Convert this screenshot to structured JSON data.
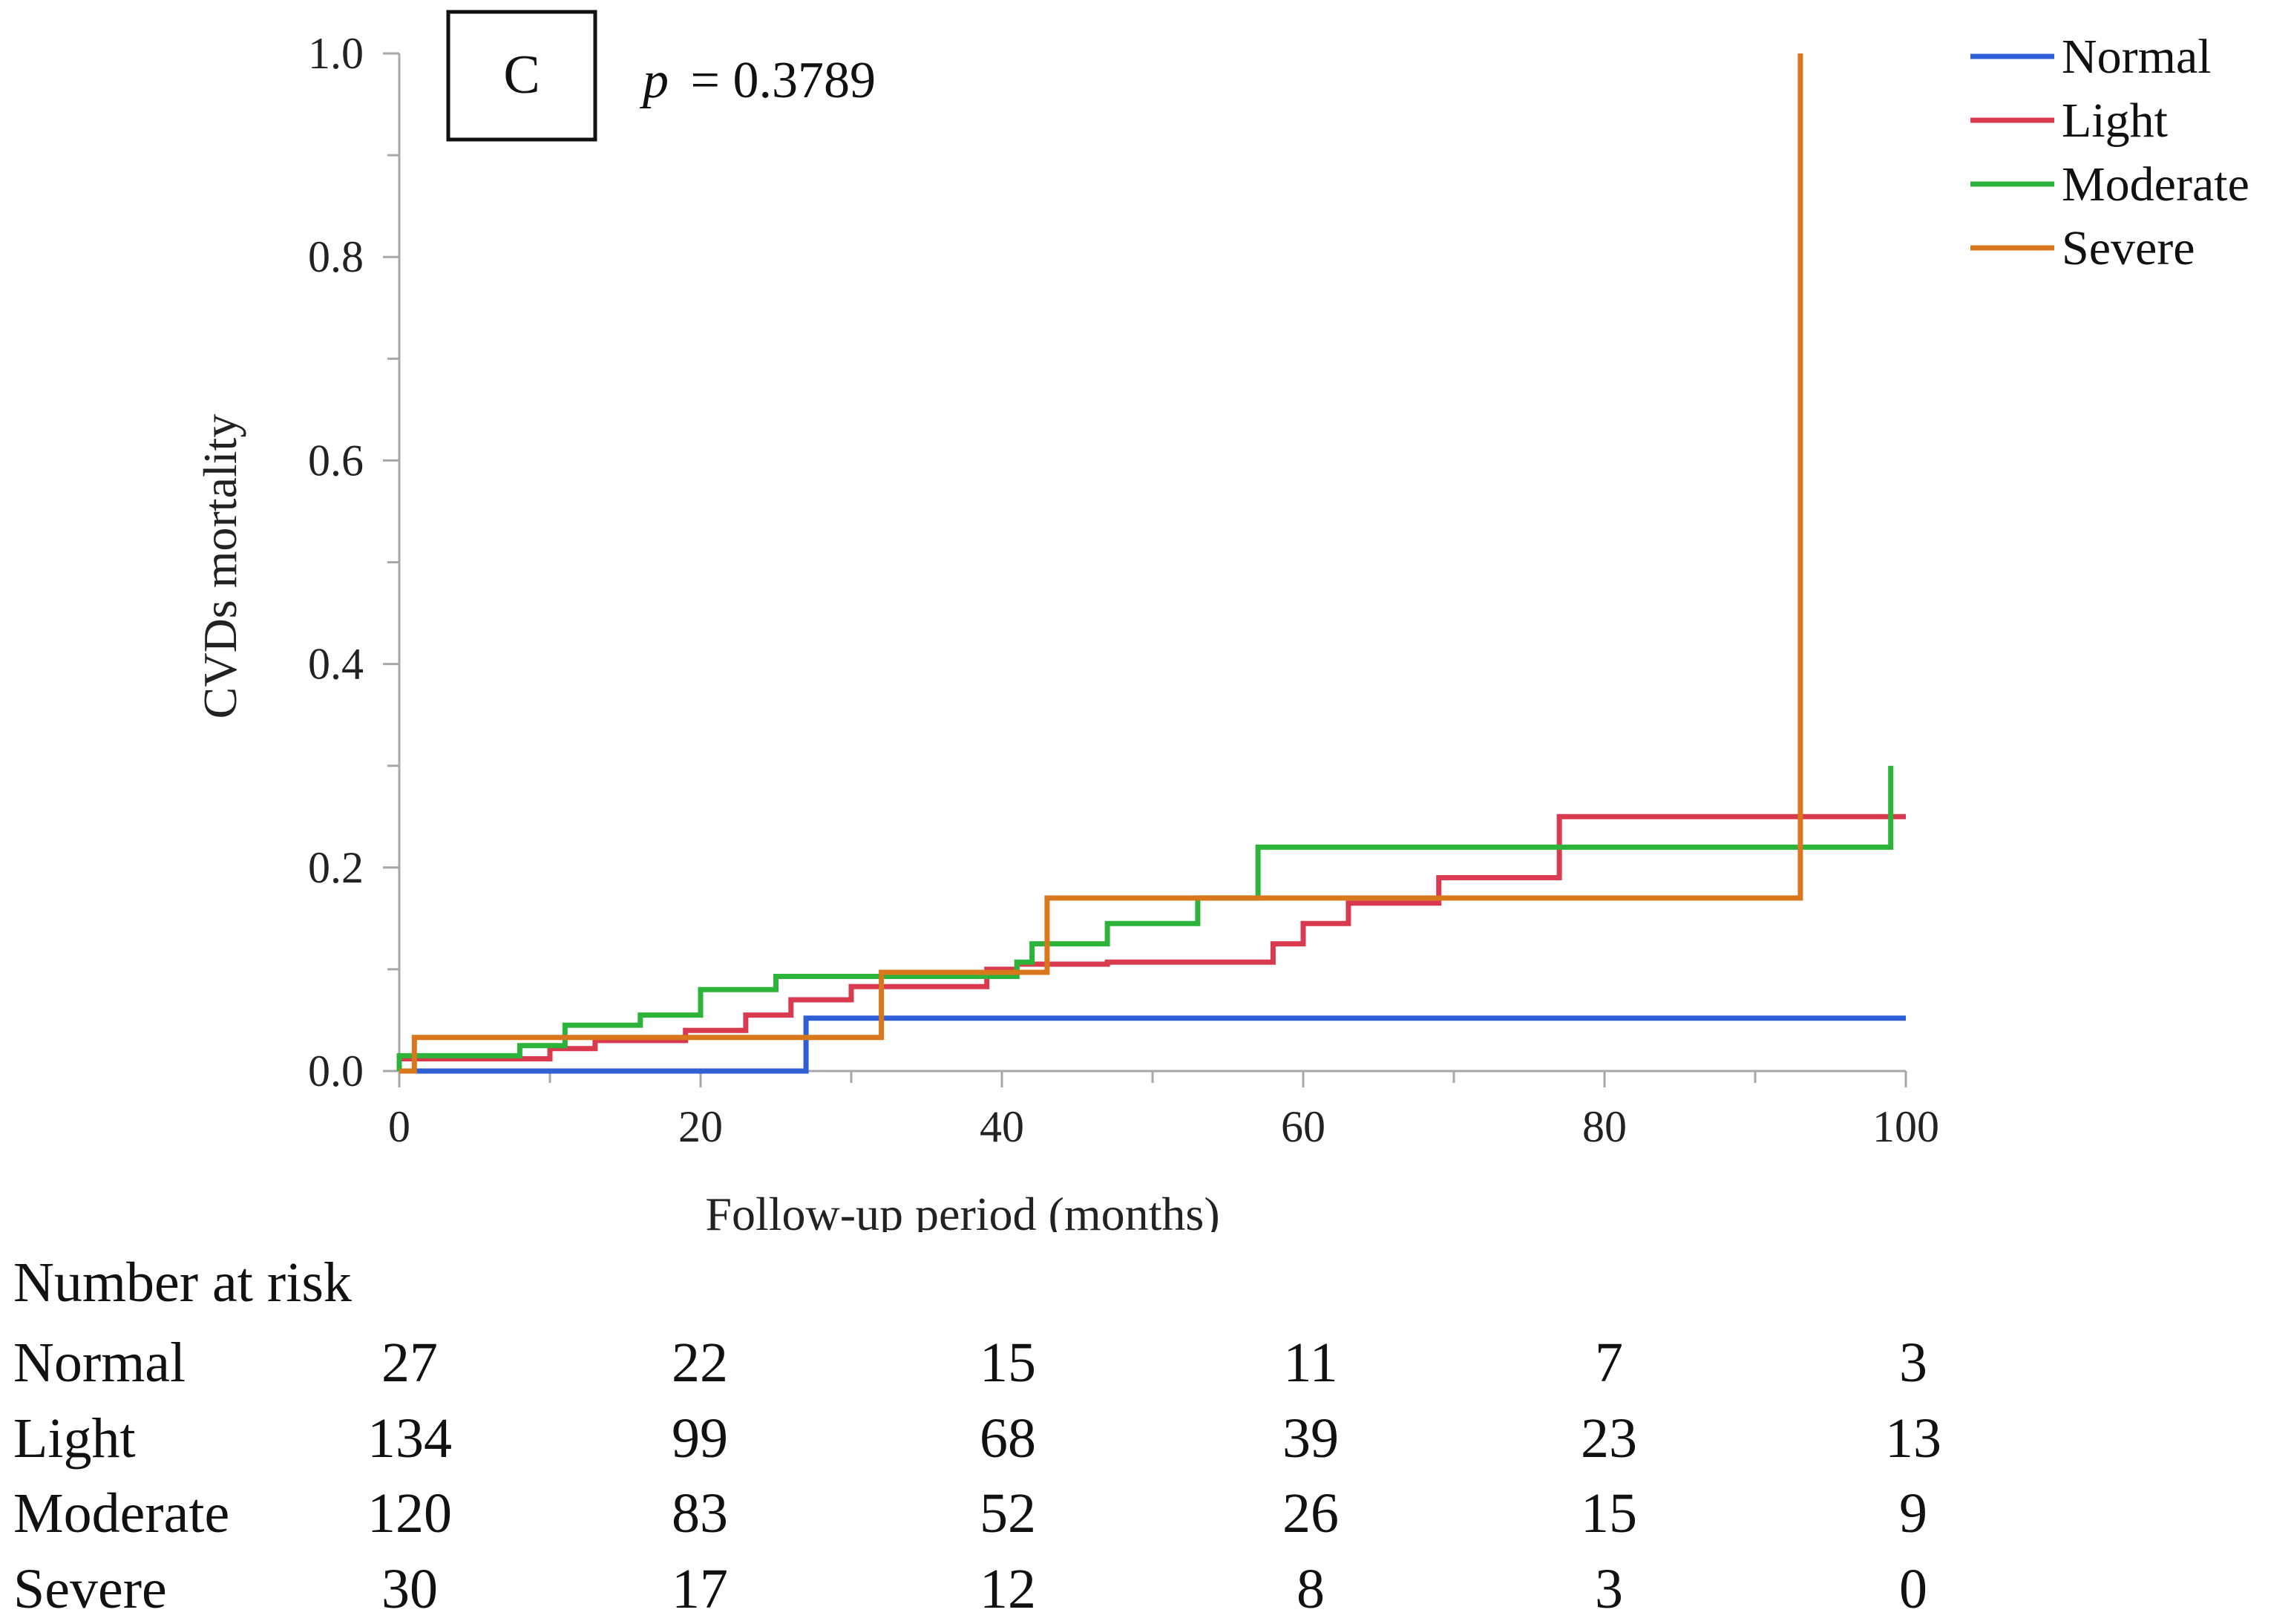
{
  "panel_label": "C",
  "p_value": {
    "symbol": "p",
    "text": "= 0.3789"
  },
  "chart_data": {
    "type": "line",
    "step": true,
    "title": "",
    "xlabel": "Follow-up period (months)",
    "ylabel": "CVDs mortality",
    "xlim": [
      0,
      100
    ],
    "ylim": [
      0,
      1.0
    ],
    "xticks": [
      0,
      20,
      40,
      60,
      80,
      100
    ],
    "yticks": [
      0.0,
      0.2,
      0.4,
      0.6,
      0.8,
      1.0
    ],
    "xtick_labels": [
      "0",
      "20",
      "40",
      "60",
      "80",
      "100"
    ],
    "ytick_labels": [
      "0.0",
      "0.2",
      "0.4",
      "0.6",
      "0.8",
      "1.0"
    ],
    "legend_position": "top-right",
    "series": [
      {
        "name": "Normal",
        "color": "#2e5fd6",
        "points": [
          [
            0,
            0.0
          ],
          [
            27,
            0.0
          ],
          [
            27,
            0.052
          ],
          [
            100,
            0.052
          ]
        ]
      },
      {
        "name": "Light",
        "color": "#d93a4f",
        "points": [
          [
            0,
            0.0
          ],
          [
            0,
            0.012
          ],
          [
            10,
            0.012
          ],
          [
            10,
            0.022
          ],
          [
            13,
            0.022
          ],
          [
            13,
            0.03
          ],
          [
            19,
            0.03
          ],
          [
            19,
            0.04
          ],
          [
            23,
            0.04
          ],
          [
            23,
            0.055
          ],
          [
            26,
            0.055
          ],
          [
            26,
            0.07
          ],
          [
            30,
            0.07
          ],
          [
            30,
            0.083
          ],
          [
            39,
            0.083
          ],
          [
            39,
            0.1
          ],
          [
            41,
            0.1
          ],
          [
            41,
            0.105
          ],
          [
            47,
            0.105
          ],
          [
            47,
            0.107
          ],
          [
            58,
            0.107
          ],
          [
            58,
            0.125
          ],
          [
            60,
            0.125
          ],
          [
            60,
            0.145
          ],
          [
            63,
            0.145
          ],
          [
            63,
            0.165
          ],
          [
            69,
            0.165
          ],
          [
            69,
            0.19
          ],
          [
            77,
            0.19
          ],
          [
            77,
            0.25
          ],
          [
            100,
            0.25
          ]
        ]
      },
      {
        "name": "Moderate",
        "color": "#2bb33a",
        "points": [
          [
            0,
            0.0
          ],
          [
            0,
            0.015
          ],
          [
            8,
            0.015
          ],
          [
            8,
            0.025
          ],
          [
            11,
            0.025
          ],
          [
            11,
            0.045
          ],
          [
            16,
            0.045
          ],
          [
            16,
            0.055
          ],
          [
            20,
            0.055
          ],
          [
            20,
            0.08
          ],
          [
            25,
            0.08
          ],
          [
            25,
            0.093
          ],
          [
            41,
            0.093
          ],
          [
            41,
            0.107
          ],
          [
            42,
            0.107
          ],
          [
            42,
            0.125
          ],
          [
            47,
            0.125
          ],
          [
            47,
            0.145
          ],
          [
            53,
            0.145
          ],
          [
            53,
            0.17
          ],
          [
            57,
            0.17
          ],
          [
            57,
            0.22
          ],
          [
            99,
            0.22
          ],
          [
            99,
            0.3
          ]
        ]
      },
      {
        "name": "Severe",
        "color": "#d9771c",
        "points": [
          [
            0,
            0.0
          ],
          [
            1,
            0.0
          ],
          [
            1,
            0.033
          ],
          [
            32,
            0.033
          ],
          [
            32,
            0.097
          ],
          [
            43,
            0.097
          ],
          [
            43,
            0.17
          ],
          [
            93,
            0.17
          ],
          [
            93,
            1.0
          ]
        ]
      }
    ]
  },
  "risk_table": {
    "title": "Number at risk",
    "time_points": [
      0,
      20,
      40,
      60,
      80,
      100
    ],
    "rows": [
      {
        "label": "Normal",
        "counts": [
          "27",
          "22",
          "15",
          "11",
          "7",
          "3"
        ]
      },
      {
        "label": "Light",
        "counts": [
          "134",
          "99",
          "68",
          "39",
          "23",
          "13"
        ]
      },
      {
        "label": "Moderate",
        "counts": [
          "120",
          "83",
          "52",
          "26",
          "15",
          "9"
        ]
      },
      {
        "label": "Severe",
        "counts": [
          "30",
          "17",
          "12",
          "8",
          "3",
          "0"
        ]
      }
    ]
  }
}
